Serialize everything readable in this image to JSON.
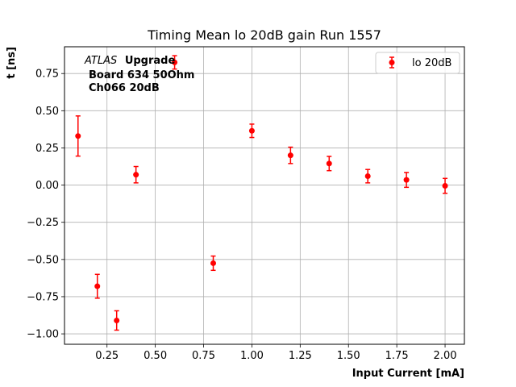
{
  "chart_data": {
    "type": "scatter",
    "title": "Timing Mean lo 20dB gain Run 1557",
    "xlabel": "Input Current [mA]",
    "ylabel": "t [ns]",
    "xlim": [
      0.03,
      2.1
    ],
    "ylim": [
      -1.07,
      0.93
    ],
    "xticks": [
      "0.25",
      "0.50",
      "0.75",
      "1.00",
      "1.25",
      "1.50",
      "1.75",
      "2.00"
    ],
    "yticks": [
      "-1.00",
      "-0.75",
      "-0.50",
      "-0.25",
      "0.00",
      "0.25",
      "0.50",
      "0.75"
    ],
    "grid": true,
    "legend_position": "top-right",
    "annotation": {
      "atlas": "ATLAS",
      "upgrade": "Upgrade",
      "line2": "Board 634 50Ohm",
      "line3": "Ch066 20dB"
    },
    "series": [
      {
        "name": "lo 20dB",
        "color": "#ff0000",
        "points": [
          {
            "x": 0.1,
            "y": 0.33,
            "err": 0.135
          },
          {
            "x": 0.2,
            "y": -0.68,
            "err": 0.08
          },
          {
            "x": 0.3,
            "y": -0.91,
            "err": 0.065
          },
          {
            "x": 0.4,
            "y": 0.07,
            "err": 0.055
          },
          {
            "x": 0.6,
            "y": 0.825,
            "err": 0.045
          },
          {
            "x": 0.8,
            "y": -0.525,
            "err": 0.048
          },
          {
            "x": 1.0,
            "y": 0.365,
            "err": 0.045
          },
          {
            "x": 1.2,
            "y": 0.2,
            "err": 0.055
          },
          {
            "x": 1.4,
            "y": 0.145,
            "err": 0.048
          },
          {
            "x": 1.6,
            "y": 0.06,
            "err": 0.045
          },
          {
            "x": 1.8,
            "y": 0.035,
            "err": 0.05
          },
          {
            "x": 2.0,
            "y": -0.005,
            "err": 0.05
          }
        ]
      }
    ]
  }
}
